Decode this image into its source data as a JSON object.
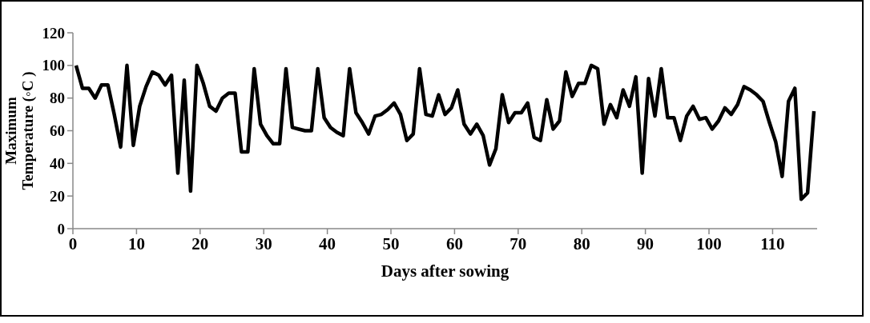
{
  "chart_data": {
    "type": "line",
    "xlabel": "Days after sowing",
    "ylabel": "Maximum Temperature (◦C )",
    "x": [
      0.5,
      1.5,
      2.5,
      3.5,
      4.5,
      5.5,
      6.5,
      7.5,
      8.5,
      9.5,
      10.5,
      11.5,
      12.5,
      13.5,
      14.5,
      15.5,
      16.5,
      17.5,
      18.5,
      19.5,
      20.5,
      21.5,
      22.5,
      23.5,
      24.5,
      25.5,
      26.5,
      27.5,
      28.5,
      29.5,
      30.5,
      31.5,
      32.5,
      33.5,
      34.5,
      35.5,
      36.5,
      37.5,
      38.5,
      39.5,
      40.5,
      41.5,
      42.5,
      43.5,
      44.5,
      45.5,
      46.5,
      47.5,
      48.5,
      49.5,
      50.5,
      51.5,
      52.5,
      53.5,
      54.5,
      55.5,
      56.5,
      57.5,
      58.5,
      59.5,
      60.5,
      61.5,
      62.5,
      63.5,
      64.5,
      65.5,
      66.5,
      67.5,
      68.5,
      69.5,
      70.5,
      71.5,
      72.5,
      73.5,
      74.5,
      75.5,
      76.5,
      77.5,
      78.5,
      79.5,
      80.5,
      81.5,
      82.5,
      83.5,
      84.5,
      85.5,
      86.5,
      87.5,
      88.5,
      89.5,
      90.5,
      91.5,
      92.5,
      93.5,
      94.5,
      95.5,
      96.5,
      97.5,
      98.5,
      99.5,
      100.5,
      101.5,
      102.5,
      103.5,
      104.5,
      105.5,
      106.5,
      107.5,
      108.5,
      109.5,
      110.5,
      111.5,
      112.5,
      113.5,
      114.5,
      115.5,
      116.5
    ],
    "series": [
      {
        "color": "#000000",
        "values": [
          100,
          86,
          86,
          80,
          88,
          88,
          70,
          50,
          100,
          51,
          75,
          87,
          96,
          94,
          88,
          94,
          34,
          91,
          23,
          100,
          89,
          75,
          72,
          80,
          83,
          83,
          47,
          47,
          98,
          64,
          57,
          52,
          52,
          98,
          62,
          61,
          60,
          60,
          98,
          68,
          62,
          59,
          57,
          98,
          71,
          65,
          58,
          69,
          70,
          73,
          77,
          70,
          54,
          58,
          98,
          70,
          69,
          82,
          70,
          74,
          85,
          64,
          58,
          64,
          57,
          39,
          49,
          82,
          65,
          71,
          71,
          77,
          56,
          54,
          79,
          61,
          66,
          96,
          81,
          89,
          89,
          100,
          98,
          64,
          76,
          68,
          85,
          75,
          93,
          34,
          92,
          69,
          98,
          68,
          68,
          54,
          69,
          75,
          67,
          68,
          61,
          66,
          74,
          70,
          76,
          87,
          85,
          82,
          78,
          65,
          53,
          32,
          78,
          86,
          18,
          22,
          72
        ]
      }
    ],
    "xlim": [
      0,
      117
    ],
    "xticks": [
      0,
      10,
      20,
      30,
      40,
      50,
      60,
      70,
      80,
      90,
      100,
      110
    ],
    "ylim": [
      0,
      120
    ],
    "yticks": [
      0,
      20,
      40,
      60,
      80,
      100,
      120
    ],
    "grid": false,
    "marker": "none",
    "line_style": "solid"
  }
}
